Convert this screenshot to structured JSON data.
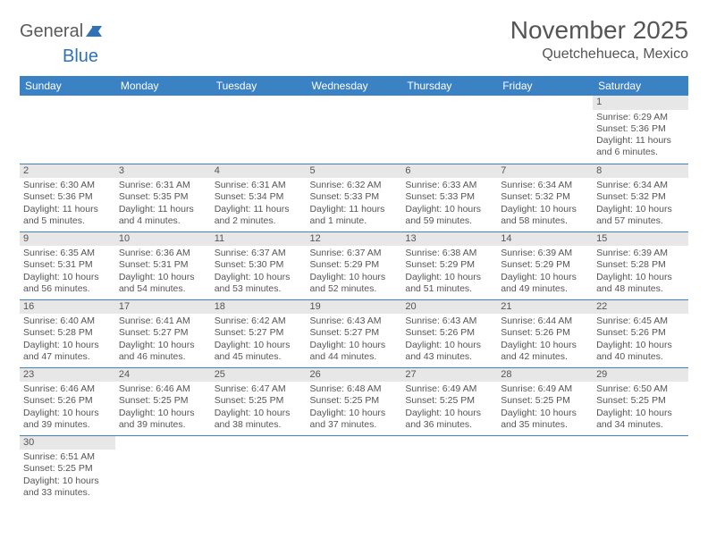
{
  "brand": {
    "name_a": "General",
    "name_b": "Blue"
  },
  "title": {
    "month": "November 2025",
    "location": "Quetchehueca, Mexico"
  },
  "colors": {
    "header_bg": "#3b82c4",
    "header_text": "#ffffff",
    "daynum_bg": "#e7e7e7",
    "rule": "#3b82c4",
    "text": "#555555"
  },
  "weekdays": [
    "Sunday",
    "Monday",
    "Tuesday",
    "Wednesday",
    "Thursday",
    "Friday",
    "Saturday"
  ],
  "first_weekday_index": 6,
  "days": [
    {
      "n": 1,
      "sunrise": "6:29 AM",
      "sunset": "5:36 PM",
      "daylight": "11 hours and 6 minutes."
    },
    {
      "n": 2,
      "sunrise": "6:30 AM",
      "sunset": "5:36 PM",
      "daylight": "11 hours and 5 minutes."
    },
    {
      "n": 3,
      "sunrise": "6:31 AM",
      "sunset": "5:35 PM",
      "daylight": "11 hours and 4 minutes."
    },
    {
      "n": 4,
      "sunrise": "6:31 AM",
      "sunset": "5:34 PM",
      "daylight": "11 hours and 2 minutes."
    },
    {
      "n": 5,
      "sunrise": "6:32 AM",
      "sunset": "5:33 PM",
      "daylight": "11 hours and 1 minute."
    },
    {
      "n": 6,
      "sunrise": "6:33 AM",
      "sunset": "5:33 PM",
      "daylight": "10 hours and 59 minutes."
    },
    {
      "n": 7,
      "sunrise": "6:34 AM",
      "sunset": "5:32 PM",
      "daylight": "10 hours and 58 minutes."
    },
    {
      "n": 8,
      "sunrise": "6:34 AM",
      "sunset": "5:32 PM",
      "daylight": "10 hours and 57 minutes."
    },
    {
      "n": 9,
      "sunrise": "6:35 AM",
      "sunset": "5:31 PM",
      "daylight": "10 hours and 56 minutes."
    },
    {
      "n": 10,
      "sunrise": "6:36 AM",
      "sunset": "5:31 PM",
      "daylight": "10 hours and 54 minutes."
    },
    {
      "n": 11,
      "sunrise": "6:37 AM",
      "sunset": "5:30 PM",
      "daylight": "10 hours and 53 minutes."
    },
    {
      "n": 12,
      "sunrise": "6:37 AM",
      "sunset": "5:29 PM",
      "daylight": "10 hours and 52 minutes."
    },
    {
      "n": 13,
      "sunrise": "6:38 AM",
      "sunset": "5:29 PM",
      "daylight": "10 hours and 51 minutes."
    },
    {
      "n": 14,
      "sunrise": "6:39 AM",
      "sunset": "5:29 PM",
      "daylight": "10 hours and 49 minutes."
    },
    {
      "n": 15,
      "sunrise": "6:39 AM",
      "sunset": "5:28 PM",
      "daylight": "10 hours and 48 minutes."
    },
    {
      "n": 16,
      "sunrise": "6:40 AM",
      "sunset": "5:28 PM",
      "daylight": "10 hours and 47 minutes."
    },
    {
      "n": 17,
      "sunrise": "6:41 AM",
      "sunset": "5:27 PM",
      "daylight": "10 hours and 46 minutes."
    },
    {
      "n": 18,
      "sunrise": "6:42 AM",
      "sunset": "5:27 PM",
      "daylight": "10 hours and 45 minutes."
    },
    {
      "n": 19,
      "sunrise": "6:43 AM",
      "sunset": "5:27 PM",
      "daylight": "10 hours and 44 minutes."
    },
    {
      "n": 20,
      "sunrise": "6:43 AM",
      "sunset": "5:26 PM",
      "daylight": "10 hours and 43 minutes."
    },
    {
      "n": 21,
      "sunrise": "6:44 AM",
      "sunset": "5:26 PM",
      "daylight": "10 hours and 42 minutes."
    },
    {
      "n": 22,
      "sunrise": "6:45 AM",
      "sunset": "5:26 PM",
      "daylight": "10 hours and 40 minutes."
    },
    {
      "n": 23,
      "sunrise": "6:46 AM",
      "sunset": "5:26 PM",
      "daylight": "10 hours and 39 minutes."
    },
    {
      "n": 24,
      "sunrise": "6:46 AM",
      "sunset": "5:25 PM",
      "daylight": "10 hours and 39 minutes."
    },
    {
      "n": 25,
      "sunrise": "6:47 AM",
      "sunset": "5:25 PM",
      "daylight": "10 hours and 38 minutes."
    },
    {
      "n": 26,
      "sunrise": "6:48 AM",
      "sunset": "5:25 PM",
      "daylight": "10 hours and 37 minutes."
    },
    {
      "n": 27,
      "sunrise": "6:49 AM",
      "sunset": "5:25 PM",
      "daylight": "10 hours and 36 minutes."
    },
    {
      "n": 28,
      "sunrise": "6:49 AM",
      "sunset": "5:25 PM",
      "daylight": "10 hours and 35 minutes."
    },
    {
      "n": 29,
      "sunrise": "6:50 AM",
      "sunset": "5:25 PM",
      "daylight": "10 hours and 34 minutes."
    },
    {
      "n": 30,
      "sunrise": "6:51 AM",
      "sunset": "5:25 PM",
      "daylight": "10 hours and 33 minutes."
    }
  ],
  "labels": {
    "sunrise": "Sunrise:",
    "sunset": "Sunset:",
    "daylight": "Daylight:"
  }
}
